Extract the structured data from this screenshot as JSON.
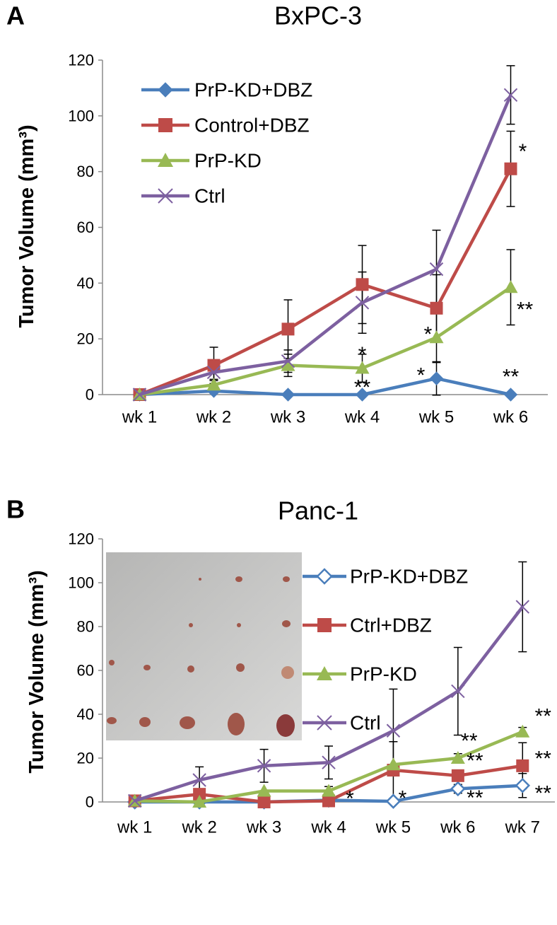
{
  "chart_data": [
    {
      "type": "line",
      "panel_label": "A",
      "title": "BxPC-3",
      "y_label": "Tumor Volume (mm³)",
      "categories": [
        "wk 1",
        "wk 2",
        "wk 3",
        "wk 4",
        "wk 5",
        "wk 6"
      ],
      "ylim": [
        0,
        120
      ],
      "yticks": [
        0,
        20,
        40,
        60,
        80,
        100,
        120
      ],
      "series": [
        {
          "name": "PrP-KD+DBZ",
          "color": "#4a7ebb",
          "marker": "diamond",
          "values": [
            0,
            1.3,
            0,
            0,
            5.8,
            0
          ],
          "errors": [
            null,
            null,
            null,
            null,
            6,
            null
          ]
        },
        {
          "name": "Control+DBZ",
          "color": "#be4b48",
          "marker": "square",
          "values": [
            0,
            10.5,
            23.5,
            39.5,
            31,
            81
          ],
          "errors": [
            null,
            6.5,
            10.5,
            14,
            12,
            13.5
          ]
        },
        {
          "name": "PrP-KD",
          "color": "#98b954",
          "marker": "triangle",
          "values": [
            0,
            3.5,
            10.5,
            9.5,
            20.5,
            38.5
          ],
          "errors": [
            null,
            2,
            4,
            5,
            9,
            13.5
          ]
        },
        {
          "name": "Ctrl",
          "color": "#7d60a0",
          "marker": "x",
          "values": [
            0,
            8,
            12,
            33,
            45,
            107.5
          ],
          "errors": [
            null,
            3,
            4,
            11,
            14,
            10.5
          ]
        }
      ],
      "annotations": [
        {
          "text": "*",
          "series": "Control+DBZ",
          "category": "wk 6"
        },
        {
          "text": "**",
          "series": "PrP-KD",
          "category": "wk 6"
        },
        {
          "text": "*",
          "series": "PrP-KD",
          "category": "wk 4"
        },
        {
          "text": "**",
          "series": "PrP-KD+DBZ",
          "category": "wk 4"
        },
        {
          "text": "*",
          "series": "PrP-KD",
          "category": "wk 5"
        },
        {
          "text": "*",
          "series": "PrP-KD+DBZ",
          "category": "wk 5"
        },
        {
          "text": "**",
          "series": "PrP-KD+DBZ",
          "category": "wk 6"
        }
      ]
    },
    {
      "type": "line",
      "panel_label": "B",
      "title": "Panc-1",
      "y_label": "Tumor Volume (mm³)",
      "categories": [
        "wk 1",
        "wk 2",
        "wk 3",
        "wk 4",
        "wk 5",
        "wk 6",
        "wk 7"
      ],
      "ylim": [
        0,
        120
      ],
      "yticks": [
        0,
        20,
        40,
        60,
        80,
        100,
        120
      ],
      "series": [
        {
          "name": "PrP-KD+DBZ",
          "color": "#4a7ebb",
          "marker": "diamond-open",
          "values": [
            0,
            0,
            0,
            0.8,
            0.3,
            6,
            7.5
          ],
          "errors": [
            null,
            null,
            null,
            null,
            null,
            2,
            5.5
          ]
        },
        {
          "name": "Ctrl+DBZ",
          "color": "#be4b48",
          "marker": "square",
          "values": [
            0.5,
            3.5,
            0,
            0.5,
            14.5,
            12,
            16.5
          ],
          "errors": [
            null,
            2,
            null,
            null,
            13,
            null,
            10.5
          ]
        },
        {
          "name": "PrP-KD",
          "color": "#98b954",
          "marker": "triangle",
          "values": [
            0.5,
            0,
            5,
            5,
            17,
            20,
            32
          ],
          "errors": [
            null,
            null,
            null,
            2,
            null,
            2,
            2
          ]
        },
        {
          "name": "Ctrl",
          "color": "#7d60a0",
          "marker": "x",
          "values": [
            0.5,
            10,
            16.5,
            18,
            32.5,
            50.5,
            89
          ],
          "errors": [
            null,
            6,
            7.5,
            7.5,
            19,
            20,
            20.5
          ]
        }
      ],
      "annotations": [
        {
          "text": "*",
          "series": "PrP-KD+DBZ",
          "category": "wk 4"
        },
        {
          "text": "*",
          "series": "PrP-KD+DBZ",
          "category": "wk 5"
        },
        {
          "text": "**",
          "series": "PrP-KD+DBZ",
          "category": "wk 6"
        },
        {
          "text": "**",
          "series": "PrP-KD+DBZ",
          "category": "wk 7"
        },
        {
          "text": "**",
          "series": "Ctrl+DBZ",
          "category": "wk 6"
        },
        {
          "text": "**",
          "series": "Ctrl+DBZ",
          "category": "wk 7"
        },
        {
          "text": "**",
          "series": "PrP-KD",
          "category": "wk 6"
        },
        {
          "text": "**",
          "series": "PrP-KD",
          "category": "wk 7"
        }
      ]
    }
  ]
}
